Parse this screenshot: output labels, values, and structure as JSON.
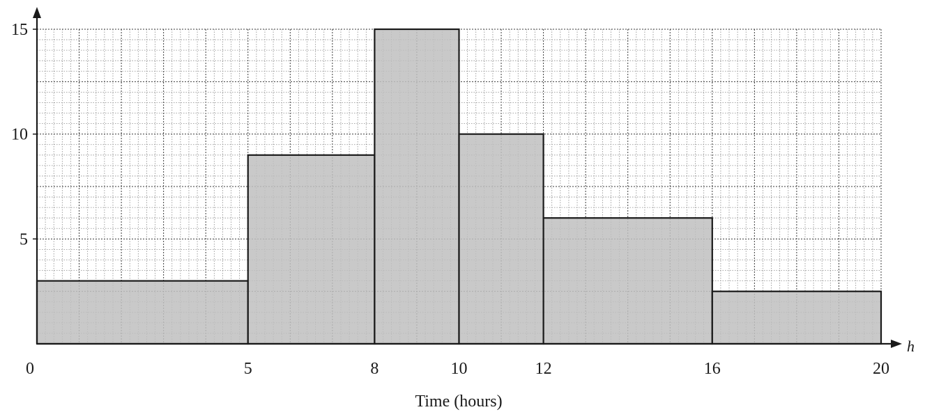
{
  "chart_data": {
    "type": "histogram",
    "title": "",
    "xlabel": "Time (hours)",
    "ylabel": "",
    "x_axis_symbol": "h",
    "xlim": [
      0,
      20
    ],
    "ylim": [
      0,
      15
    ],
    "x_ticks": [
      {
        "value": 0,
        "label": "0"
      },
      {
        "value": 5,
        "label": "5"
      },
      {
        "value": 8,
        "label": "8"
      },
      {
        "value": 10,
        "label": "10"
      },
      {
        "value": 12,
        "label": "12"
      },
      {
        "value": 16,
        "label": "16"
      },
      {
        "value": 20,
        "label": "20"
      }
    ],
    "y_ticks": [
      {
        "value": 5,
        "label": "5"
      },
      {
        "value": 10,
        "label": "10"
      },
      {
        "value": 15,
        "label": "15"
      }
    ],
    "bins": [
      {
        "start": 0,
        "end": 5,
        "height": 3
      },
      {
        "start": 5,
        "end": 8,
        "height": 9
      },
      {
        "start": 8,
        "end": 10,
        "height": 15
      },
      {
        "start": 10,
        "end": 12,
        "height": 10
      },
      {
        "start": 12,
        "end": 16,
        "height": 6
      },
      {
        "start": 16,
        "end": 20,
        "height": 2.5
      }
    ],
    "grid": true,
    "bar_color": "#c0c0c0",
    "line_color": "#1a1a1a"
  }
}
